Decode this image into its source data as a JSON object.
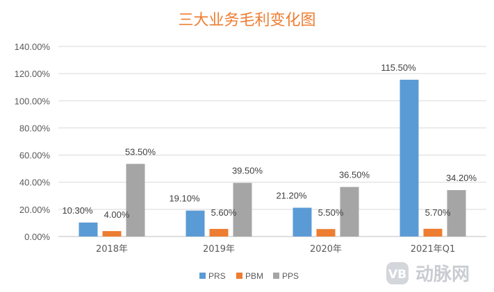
{
  "chart_data": {
    "type": "bar",
    "title": "三大业务毛利变化图",
    "categories": [
      "2018年",
      "2019年",
      "2020年",
      "2021年Q1"
    ],
    "series": [
      {
        "name": "PRS",
        "values": [
          10.3,
          19.1,
          21.2,
          115.5
        ],
        "labels": [
          "10.30%",
          "19.10%",
          "21.20%",
          "115.50%"
        ],
        "color": "#5B9BD5"
      },
      {
        "name": "PBM",
        "values": [
          4.0,
          5.6,
          5.5,
          5.7
        ],
        "labels": [
          "4.00%",
          "5.60%",
          "5.50%",
          "5.70%"
        ],
        "color": "#ED7D31"
      },
      {
        "name": "PPS",
        "values": [
          53.5,
          39.5,
          36.5,
          34.2
        ],
        "labels": [
          "53.50%",
          "39.50%",
          "36.50%",
          "34.20%"
        ],
        "color": "#A5A5A5"
      }
    ],
    "yticks": [
      "0.00%",
      "20.00%",
      "40.00%",
      "60.00%",
      "80.00%",
      "100.00%",
      "120.00%",
      "140.00%"
    ],
    "ylim": [
      0,
      140
    ],
    "grid": true,
    "legend": "bottom"
  },
  "watermark": {
    "text": "动脉网",
    "logo_icon": "vb-logo-icon"
  }
}
